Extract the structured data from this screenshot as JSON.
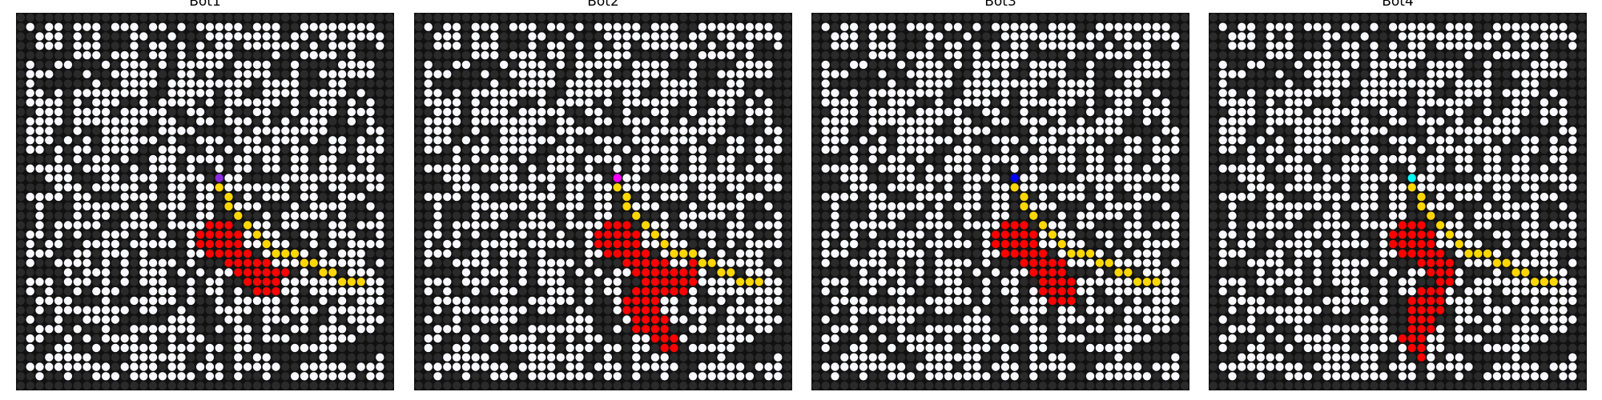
{
  "colors": {
    "wall": "#000000",
    "open": "#f8f8ff",
    "fire": "#ff0000",
    "path": "#ffd700",
    "background": "#111111"
  },
  "chart_data": [
    {
      "type": "grid",
      "title": "Bot1",
      "grid_size": 40,
      "bot_color": "#8a2be2",
      "bot": [
        17,
        21
      ],
      "path": [
        [
          17,
          21
        ],
        [
          18,
          21
        ],
        [
          19,
          22
        ],
        [
          20,
          22
        ],
        [
          21,
          23
        ],
        [
          22,
          24
        ],
        [
          23,
          25
        ],
        [
          24,
          26
        ],
        [
          25,
          27
        ],
        [
          25,
          28
        ],
        [
          25,
          29
        ],
        [
          26,
          30
        ],
        [
          26,
          31
        ],
        [
          27,
          32
        ],
        [
          27,
          33
        ],
        [
          28,
          34
        ],
        [
          28,
          35
        ],
        [
          28,
          36
        ]
      ],
      "fire_cells": [
        [
          22,
          20
        ],
        [
          22,
          21
        ],
        [
          23,
          20
        ],
        [
          23,
          21
        ],
        [
          24,
          22
        ],
        [
          25,
          22
        ],
        [
          26,
          23
        ],
        [
          27,
          23
        ],
        [
          28,
          24
        ],
        [
          29,
          25
        ],
        [
          29,
          26
        ],
        [
          28,
          27
        ],
        [
          27,
          28
        ],
        [
          23,
          22
        ],
        [
          24,
          23
        ],
        [
          25,
          24
        ],
        [
          26,
          25
        ],
        [
          27,
          26
        ],
        [
          28,
          25
        ],
        [
          26,
          22
        ],
        [
          25,
          21
        ],
        [
          24,
          20
        ],
        [
          23,
          19
        ],
        [
          24,
          19
        ],
        [
          25,
          20
        ],
        [
          27,
          24
        ],
        [
          28,
          26
        ],
        [
          29,
          27
        ],
        [
          26,
          26
        ],
        [
          27,
          27
        ],
        [
          26,
          24
        ],
        [
          25,
          23
        ],
        [
          24,
          21
        ],
        [
          22,
          22
        ],
        [
          23,
          23
        ],
        [
          27,
          25
        ]
      ]
    },
    {
      "type": "grid",
      "title": "Bot2",
      "grid_size": 40,
      "bot_color": "#ff00ff",
      "bot": [
        17,
        21
      ],
      "path": [
        [
          17,
          21
        ],
        [
          18,
          21
        ],
        [
          19,
          22
        ],
        [
          20,
          22
        ],
        [
          21,
          23
        ],
        [
          22,
          24
        ],
        [
          23,
          25
        ],
        [
          24,
          26
        ],
        [
          25,
          27
        ],
        [
          25,
          28
        ],
        [
          25,
          29
        ],
        [
          26,
          30
        ],
        [
          26,
          31
        ],
        [
          27,
          32
        ],
        [
          27,
          33
        ],
        [
          28,
          34
        ],
        [
          28,
          35
        ],
        [
          28,
          36
        ]
      ],
      "fire_cells": [
        [
          22,
          20
        ],
        [
          22,
          21
        ],
        [
          23,
          20
        ],
        [
          23,
          21
        ],
        [
          24,
          22
        ],
        [
          25,
          22
        ],
        [
          26,
          23
        ],
        [
          27,
          23
        ],
        [
          28,
          24
        ],
        [
          29,
          25
        ],
        [
          29,
          26
        ],
        [
          28,
          27
        ],
        [
          27,
          28
        ],
        [
          23,
          22
        ],
        [
          24,
          23
        ],
        [
          25,
          24
        ],
        [
          26,
          25
        ],
        [
          27,
          26
        ],
        [
          28,
          25
        ],
        [
          26,
          22
        ],
        [
          25,
          21
        ],
        [
          24,
          20
        ],
        [
          23,
          19
        ],
        [
          24,
          19
        ],
        [
          25,
          20
        ],
        [
          27,
          24
        ],
        [
          28,
          26
        ],
        [
          29,
          27
        ],
        [
          26,
          26
        ],
        [
          27,
          27
        ],
        [
          26,
          24
        ],
        [
          25,
          23
        ],
        [
          24,
          21
        ],
        [
          22,
          22
        ],
        [
          23,
          23
        ],
        [
          27,
          25
        ],
        [
          30,
          23
        ],
        [
          31,
          23
        ],
        [
          32,
          24
        ],
        [
          33,
          24
        ],
        [
          34,
          25
        ],
        [
          35,
          26
        ],
        [
          35,
          27
        ],
        [
          30,
          24
        ],
        [
          31,
          24
        ],
        [
          32,
          25
        ],
        [
          33,
          25
        ],
        [
          34,
          26
        ],
        [
          29,
          23
        ],
        [
          30,
          22
        ],
        [
          31,
          22
        ],
        [
          32,
          23
        ],
        [
          33,
          23
        ],
        [
          29,
          24
        ],
        [
          30,
          25
        ],
        [
          31,
          25
        ],
        [
          32,
          26
        ],
        [
          33,
          26
        ],
        [
          34,
          27
        ],
        [
          28,
          28
        ],
        [
          28,
          29
        ],
        [
          27,
          29
        ],
        [
          29,
          28
        ],
        [
          26,
          29
        ]
      ]
    },
    {
      "type": "grid",
      "title": "Bot3",
      "grid_size": 40,
      "bot_color": "#0000ff",
      "bot": [
        17,
        21
      ],
      "path": [
        [
          17,
          21
        ],
        [
          18,
          21
        ],
        [
          19,
          22
        ],
        [
          20,
          22
        ],
        [
          21,
          23
        ],
        [
          22,
          24
        ],
        [
          23,
          25
        ],
        [
          24,
          26
        ],
        [
          25,
          27
        ],
        [
          25,
          28
        ],
        [
          25,
          29
        ],
        [
          26,
          30
        ],
        [
          26,
          31
        ],
        [
          27,
          32
        ],
        [
          27,
          33
        ],
        [
          28,
          34
        ],
        [
          28,
          35
        ],
        [
          28,
          36
        ]
      ],
      "fire_cells": [
        [
          22,
          20
        ],
        [
          22,
          21
        ],
        [
          23,
          20
        ],
        [
          23,
          21
        ],
        [
          24,
          22
        ],
        [
          25,
          22
        ],
        [
          26,
          23
        ],
        [
          27,
          23
        ],
        [
          28,
          24
        ],
        [
          29,
          25
        ],
        [
          29,
          26
        ],
        [
          23,
          22
        ],
        [
          24,
          23
        ],
        [
          25,
          24
        ],
        [
          26,
          25
        ],
        [
          27,
          26
        ],
        [
          28,
          25
        ],
        [
          26,
          22
        ],
        [
          25,
          21
        ],
        [
          24,
          20
        ],
        [
          23,
          19
        ],
        [
          24,
          19
        ],
        [
          25,
          20
        ],
        [
          27,
          24
        ],
        [
          28,
          26
        ],
        [
          26,
          26
        ],
        [
          26,
          24
        ],
        [
          25,
          23
        ],
        [
          24,
          21
        ],
        [
          22,
          22
        ],
        [
          23,
          23
        ],
        [
          27,
          25
        ],
        [
          29,
          24
        ],
        [
          30,
          25
        ],
        [
          30,
          26
        ],
        [
          28,
          27
        ],
        [
          29,
          27
        ],
        [
          30,
          27
        ]
      ]
    },
    {
      "type": "grid",
      "title": "Bot4",
      "grid_size": 40,
      "bot_color": "#00ffff",
      "bot": [
        17,
        21
      ],
      "path": [
        [
          17,
          21
        ],
        [
          18,
          21
        ],
        [
          19,
          22
        ],
        [
          20,
          22
        ],
        [
          21,
          23
        ],
        [
          22,
          24
        ],
        [
          23,
          25
        ],
        [
          24,
          26
        ],
        [
          25,
          27
        ],
        [
          25,
          28
        ],
        [
          25,
          29
        ],
        [
          26,
          30
        ],
        [
          26,
          31
        ],
        [
          27,
          32
        ],
        [
          27,
          33
        ],
        [
          28,
          34
        ],
        [
          28,
          35
        ],
        [
          28,
          36
        ]
      ],
      "fire_cells": [
        [
          22,
          20
        ],
        [
          22,
          21
        ],
        [
          23,
          20
        ],
        [
          23,
          21
        ],
        [
          24,
          22
        ],
        [
          25,
          22
        ],
        [
          26,
          23
        ],
        [
          27,
          23
        ],
        [
          28,
          24
        ],
        [
          23,
          22
        ],
        [
          24,
          23
        ],
        [
          25,
          24
        ],
        [
          26,
          25
        ],
        [
          28,
          25
        ],
        [
          26,
          22
        ],
        [
          25,
          21
        ],
        [
          24,
          20
        ],
        [
          23,
          19
        ],
        [
          24,
          19
        ],
        [
          25,
          20
        ],
        [
          27,
          24
        ],
        [
          26,
          24
        ],
        [
          25,
          23
        ],
        [
          24,
          21
        ],
        [
          22,
          22
        ],
        [
          23,
          23
        ],
        [
          27,
          25
        ],
        [
          29,
          23
        ],
        [
          30,
          23
        ],
        [
          31,
          23
        ],
        [
          32,
          22
        ],
        [
          33,
          22
        ],
        [
          34,
          21
        ],
        [
          35,
          21
        ],
        [
          36,
          22
        ],
        [
          29,
          22
        ],
        [
          30,
          22
        ],
        [
          31,
          22
        ],
        [
          32,
          23
        ],
        [
          33,
          23
        ],
        [
          34,
          22
        ],
        [
          35,
          22
        ],
        [
          29,
          24
        ],
        [
          30,
          24
        ],
        [
          31,
          24
        ],
        [
          32,
          21
        ],
        [
          33,
          21
        ],
        [
          31,
          21
        ],
        [
          30,
          21
        ],
        [
          34,
          20
        ]
      ]
    }
  ]
}
